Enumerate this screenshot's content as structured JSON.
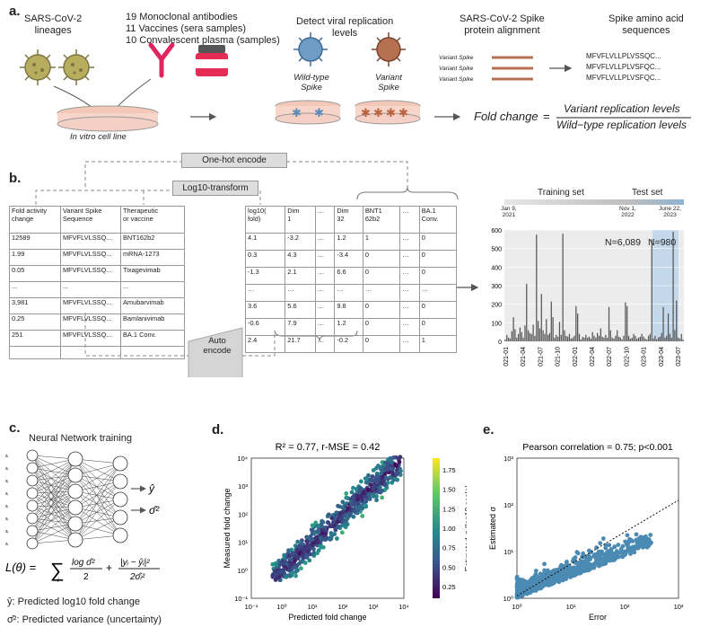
{
  "panel_a": {
    "label": "a.",
    "lineages": "SARS-CoV-2\nlineages",
    "sources": [
      "19 Monoclonal antibodies",
      "11 Vaccines (sera samples)",
      "10 Convalescent plasma (samples)"
    ],
    "cell_line": "In vitro cell line",
    "detect_title": "Detect viral replication\nlevels",
    "wt_label": "Wild-type\nSpike",
    "variant_label": "Variant\nSpike",
    "alignment_title": "SARS-CoV-2 Spike\nprotein alignment",
    "variant_spike_rows": [
      "Variant Spike",
      "Variant Spike",
      "Variant Spike"
    ],
    "aa_title": "Spike amino acid\nsequences",
    "aa_sequences": [
      "MFVFLVLLPLVSSQC...",
      "MFVFLVLLPLVSFQC...",
      "MFVFLVLLPLVSFQC..."
    ],
    "fold_change_lhs": "Fold change",
    "fold_change_eq": "=",
    "fold_change_num": "Variant replication levels",
    "fold_change_den": "Wild−type replication levels"
  },
  "panel_b": {
    "label": "b.",
    "one_hot": "One-hot encode",
    "log10": "Log10-transform",
    "auto_encode": "Auto\nencode",
    "raw_table": {
      "headers": [
        "Fold activity\nchange",
        "Variant Spike\nSequence",
        "Therapeutic\nor vaccine"
      ],
      "rows": [
        [
          "12589",
          "MFVFLVLSSQ...",
          "BNT162b2"
        ],
        [
          "1.99",
          "MFVFLVLSSQ...",
          "mRNA-1273"
        ],
        [
          "0.05",
          "MFVFLVLSSQ...",
          "Tixagevimab"
        ],
        [
          "...",
          "...",
          "..."
        ],
        [
          "3,981",
          "MFVFLVLSSQ...",
          "Amubarvimab"
        ],
        [
          "0.25",
          "MFVFLVLSSQ...",
          "Bamlanivimab"
        ],
        [
          "251",
          "MFVFLVLSSQ...",
          "BA.1 Conv."
        ]
      ]
    },
    "enc_table": {
      "headers": [
        "log10(\nfold)",
        "Dim\n1",
        "…",
        "Dim\n32",
        "BNT1\n62b2",
        "…",
        "BA.1\nConv."
      ],
      "rows": [
        [
          "4.1",
          "-3.2",
          "…",
          "1.2",
          "1",
          "…",
          "0"
        ],
        [
          "0.3",
          "4.3",
          "…",
          "-3.4",
          "0",
          "…",
          "0"
        ],
        [
          "-1.3",
          "2.1",
          "…",
          "6.6",
          "0",
          "…",
          "0"
        ],
        [
          "…",
          "…",
          "…",
          "…",
          "…",
          "…",
          "…"
        ],
        [
          "3.6",
          "5.6",
          "…",
          "9.8",
          "0",
          "…",
          "0"
        ],
        [
          "-0.6",
          "7.9",
          "…",
          "1.2",
          "0",
          "…",
          "0"
        ],
        [
          "2.4",
          "21.7",
          "…",
          "-0.2",
          "0",
          "…",
          "1"
        ]
      ]
    },
    "timeline": {
      "training": "Training set",
      "test": "Test set",
      "start": "Jan 9,\n2021",
      "split": "Nov 1,\n2022",
      "end": "June 22,\n2023",
      "n_train": "N=6,089",
      "n_test": "N=980"
    }
  },
  "panel_c": {
    "label": "c.",
    "title": "Neural Network training",
    "yhat_def": "ŷ: Predicted log10 fold change",
    "sigma_def": "σ̂²: Predicted variance (uncertainty)"
  },
  "panel_d": {
    "label": "d."
  },
  "panel_e": {
    "label": "e."
  },
  "chart_data": [
    {
      "type": "bar",
      "ylim": [
        0,
        600
      ],
      "yticks": [
        "0",
        "100",
        "200",
        "300",
        "400",
        "500",
        "600"
      ],
      "xticks": [
        "2021-01",
        "2021-04",
        "2021-07",
        "2021-10",
        "2022-01",
        "2022-04",
        "2022-07",
        "2022-10",
        "2023-01",
        "2023-04",
        "2023-07"
      ],
      "values": [
        10,
        35,
        20,
        15,
        55,
        130,
        65,
        20,
        40,
        75,
        50,
        20,
        85,
        310,
        60,
        45,
        40,
        90,
        30,
        575,
        110,
        70,
        255,
        60,
        40,
        120,
        35,
        45,
        215,
        130,
        20,
        35,
        25,
        105,
        35,
        580,
        60,
        30,
        25,
        40,
        15,
        20,
        30,
        190,
        150,
        40,
        10,
        25,
        20,
        35,
        20,
        25,
        15,
        50,
        30,
        20,
        45,
        30,
        70,
        25,
        20,
        35,
        20,
        185,
        60,
        20,
        15,
        30,
        60,
        25,
        20,
        10,
        30,
        210,
        190,
        30,
        15,
        20,
        40,
        30,
        15,
        20,
        25,
        40,
        25,
        15,
        10,
        30,
        40,
        550,
        15,
        30,
        10,
        20,
        25,
        45,
        185,
        20,
        30,
        150,
        40,
        20,
        590,
        60,
        220,
        20,
        15,
        40,
        10
      ]
    },
    {
      "type": "scatter",
      "title": "R² = 0.77, r-MSE = 0.42",
      "xlabel": "Predicted fold change",
      "ylabel": "Measured fold change",
      "xscale": "log",
      "yscale": "log",
      "xlim": [
        "10^-1",
        "10^4"
      ],
      "ylim": [
        "10^-1",
        "10^4"
      ],
      "colorbar_label": "Estimated σ (log10 scale)",
      "colorbar_ticks": [
        "0.25",
        "0.50",
        "0.75",
        "1.00",
        "1.25",
        "1.50",
        "1.75"
      ]
    },
    {
      "type": "scatter",
      "title": "Pearson correlation = 0.75; p<0.001",
      "xlabel": "Error",
      "ylabel": "Estimated σ",
      "xscale": "log",
      "yscale": "log",
      "xlim": [
        "10^0",
        "10^3"
      ],
      "ylim": [
        "10^0",
        "10^3"
      ]
    }
  ]
}
